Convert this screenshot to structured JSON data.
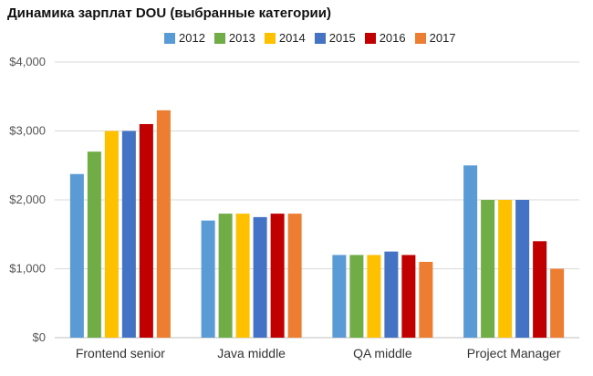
{
  "chart_data": {
    "type": "bar",
    "title": "Динамика зарплат DOU (выбранные категории)",
    "categories": [
      "Frontend senior",
      "Java middle",
      "QA middle",
      "Project Manager"
    ],
    "series": [
      {
        "name": "2012",
        "color": "#5b9bd5",
        "values": [
          2375,
          1700,
          1200,
          2500
        ]
      },
      {
        "name": "2013",
        "color": "#70ad47",
        "values": [
          2700,
          1800,
          1200,
          2000
        ]
      },
      {
        "name": "2014",
        "color": "#ffc000",
        "values": [
          3000,
          1800,
          1200,
          2000
        ]
      },
      {
        "name": "2015",
        "color": "#4472c4",
        "values": [
          3000,
          1750,
          1250,
          2000
        ]
      },
      {
        "name": "2016",
        "color": "#c00000",
        "values": [
          3100,
          1800,
          1200,
          1400
        ]
      },
      {
        "name": "2017",
        "color": "#ed7d31",
        "values": [
          3300,
          1800,
          1100,
          1000
        ]
      }
    ],
    "yticks": [
      "$0",
      "$1,000",
      "$2,000",
      "$3,000",
      "$4,000"
    ],
    "ylim": [
      0,
      4000
    ],
    "grid": true,
    "legend_position": "top"
  }
}
